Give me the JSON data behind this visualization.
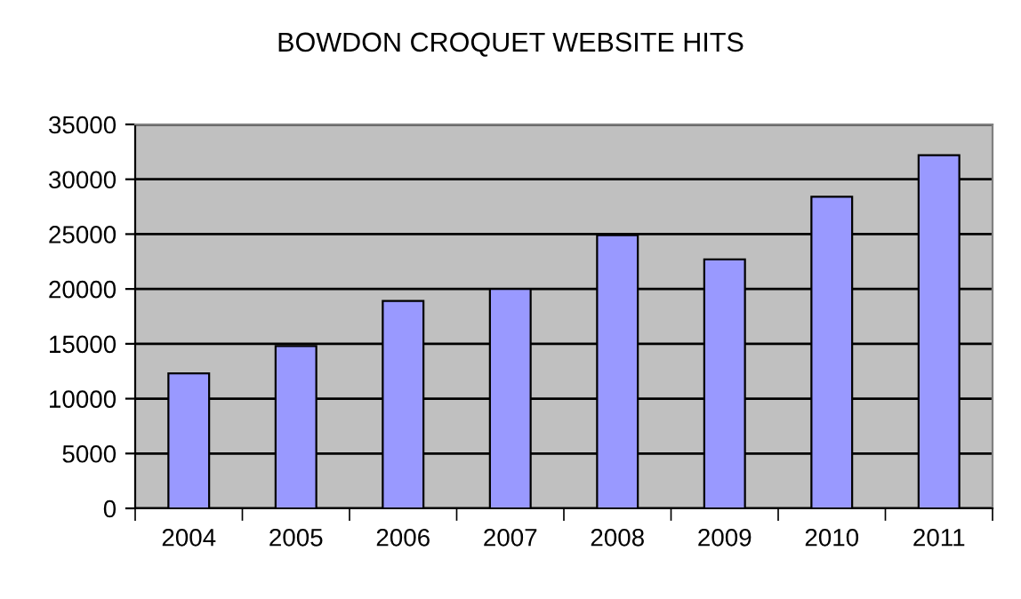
{
  "chart_data": {
    "type": "bar",
    "title": "BOWDON CROQUET WEBSITE HITS",
    "categories": [
      "2004",
      "2005",
      "2006",
      "2007",
      "2008",
      "2009",
      "2010",
      "2011"
    ],
    "values": [
      12300,
      14800,
      18900,
      20000,
      24900,
      22700,
      28400,
      32200
    ],
    "color": "#9999ff",
    "ylim": [
      0,
      35000
    ],
    "yticks": [
      0,
      5000,
      10000,
      15000,
      20000,
      25000,
      30000,
      35000
    ],
    "grid": "y",
    "legend": false
  }
}
